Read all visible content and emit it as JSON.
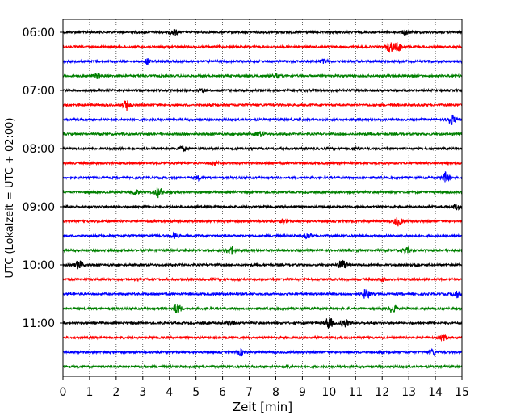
{
  "chart_data": {
    "type": "line",
    "title": "",
    "xlabel": "Zeit  [min]",
    "ylabel": "UTC (Lokalzeit = UTC + 02:00)",
    "xlim": [
      0,
      15
    ],
    "x_ticks": [
      0,
      1,
      2,
      3,
      4,
      5,
      6,
      7,
      8,
      9,
      10,
      11,
      12,
      13,
      14,
      15
    ],
    "y_tick_labels": [
      "06:00",
      "07:00",
      "08:00",
      "09:00",
      "10:00",
      "11:00"
    ],
    "y_tick_trace_index": [
      0,
      4,
      8,
      12,
      16,
      20
    ],
    "trace_minutes": 15,
    "grid": "vertical dotted at each minute",
    "color_cycle": [
      "#000000",
      "#ff0000",
      "#0000ff",
      "#008000"
    ],
    "series": [
      {
        "start": "06:00",
        "events": [
          [
            4.2,
            3
          ],
          [
            12.9,
            3
          ]
        ]
      },
      {
        "start": "06:15",
        "events": [
          [
            12.3,
            6
          ],
          [
            12.6,
            5
          ]
        ]
      },
      {
        "start": "06:30",
        "events": [
          [
            3.2,
            3
          ],
          [
            9.8,
            2
          ]
        ]
      },
      {
        "start": "06:45",
        "events": [
          [
            1.3,
            3
          ],
          [
            8.0,
            2
          ]
        ]
      },
      {
        "start": "07:00",
        "events": [
          [
            5.2,
            2
          ]
        ]
      },
      {
        "start": "07:15",
        "events": [
          [
            2.4,
            6
          ]
        ]
      },
      {
        "start": "07:30",
        "events": [
          [
            14.6,
            6
          ]
        ]
      },
      {
        "start": "07:45",
        "events": [
          [
            7.4,
            3
          ]
        ]
      },
      {
        "start": "08:00",
        "events": [
          [
            4.5,
            3
          ],
          [
            11.0,
            2
          ]
        ]
      },
      {
        "start": "08:15",
        "events": [
          [
            5.7,
            2
          ]
        ]
      },
      {
        "start": "08:30",
        "events": [
          [
            14.4,
            6
          ],
          [
            5.1,
            2
          ]
        ]
      },
      {
        "start": "08:45",
        "events": [
          [
            3.6,
            6
          ],
          [
            2.7,
            3
          ]
        ]
      },
      {
        "start": "09:00",
        "events": [
          [
            14.8,
            3
          ]
        ]
      },
      {
        "start": "09:15",
        "events": [
          [
            12.6,
            5
          ],
          [
            8.3,
            2
          ]
        ]
      },
      {
        "start": "09:30",
        "events": [
          [
            4.2,
            3
          ],
          [
            9.2,
            3
          ]
        ]
      },
      {
        "start": "09:45",
        "events": [
          [
            6.3,
            5
          ],
          [
            12.9,
            3
          ]
        ]
      },
      {
        "start": "10:00",
        "events": [
          [
            0.6,
            5
          ],
          [
            10.5,
            6
          ],
          [
            13.2,
            2
          ]
        ]
      },
      {
        "start": "10:15",
        "events": [
          [
            12.0,
            2
          ]
        ]
      },
      {
        "start": "10:30",
        "events": [
          [
            11.4,
            6
          ],
          [
            14.8,
            4
          ]
        ]
      },
      {
        "start": "10:45",
        "events": [
          [
            4.3,
            6
          ],
          [
            12.4,
            5
          ]
        ]
      },
      {
        "start": "11:00",
        "events": [
          [
            10.0,
            7
          ],
          [
            10.6,
            5
          ],
          [
            6.3,
            3
          ]
        ]
      },
      {
        "start": "11:15",
        "events": [
          [
            14.3,
            3
          ]
        ]
      },
      {
        "start": "11:30",
        "events": [
          [
            6.7,
            4
          ],
          [
            13.9,
            3
          ]
        ]
      },
      {
        "start": "11:45",
        "events": [
          [
            8.4,
            2
          ]
        ]
      }
    ]
  }
}
